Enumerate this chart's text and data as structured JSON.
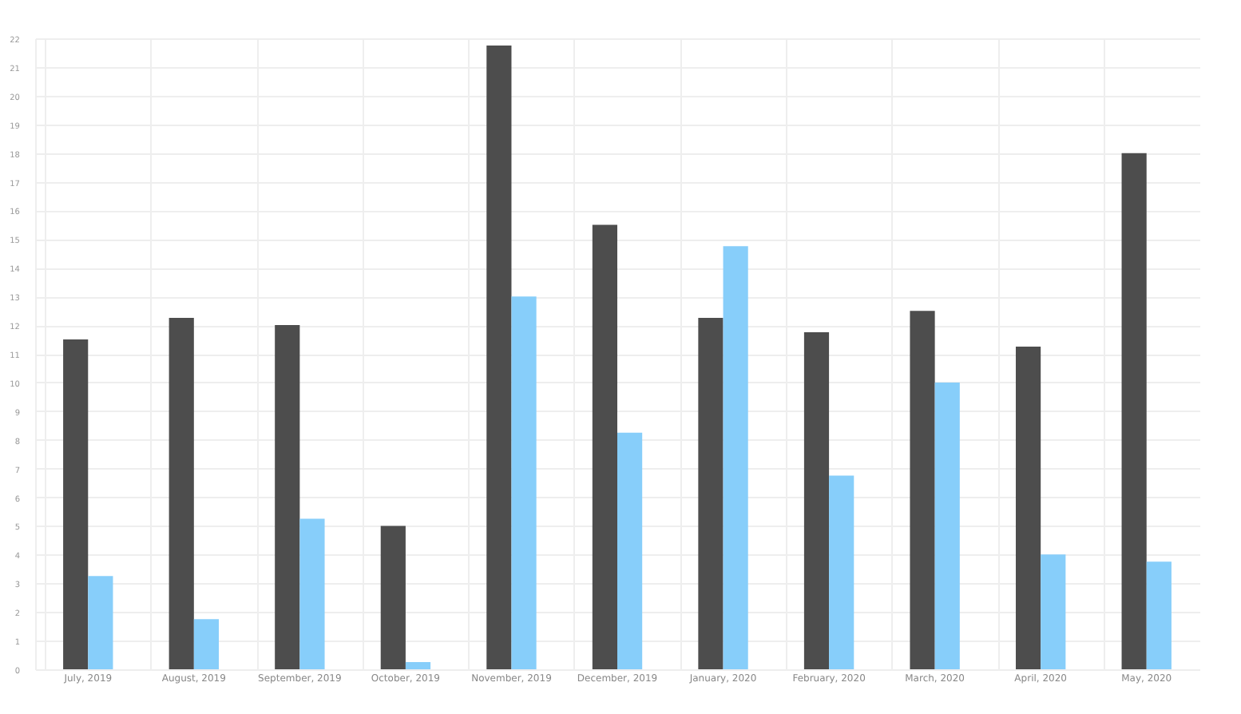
{
  "chart_data": {
    "type": "bar",
    "categories": [
      "July, 2019",
      "August, 2019",
      "September, 2019",
      "October, 2019",
      "November, 2019",
      "December, 2019",
      "January, 2020",
      "February, 2020",
      "March, 2020",
      "April, 2020",
      "May, 2020"
    ],
    "series": [
      {
        "color": "#4d4d4d",
        "values": [
          11.5,
          12.25,
          12,
          5,
          21.75,
          15.5,
          12.25,
          11.75,
          12.5,
          11.25,
          18
        ]
      },
      {
        "color": "#87cefa",
        "values": [
          3.25,
          1.75,
          5.25,
          0.25,
          13,
          8.25,
          14.75,
          6.75,
          10,
          4,
          3.75
        ]
      }
    ],
    "ylim": [
      0,
      22
    ],
    "yticks": [
      0,
      1,
      2,
      3,
      4,
      5,
      6,
      7,
      8,
      9,
      10,
      11,
      12,
      13,
      14,
      15,
      16,
      17,
      18,
      19,
      20,
      21,
      22
    ],
    "grid": true,
    "legend": false
  }
}
